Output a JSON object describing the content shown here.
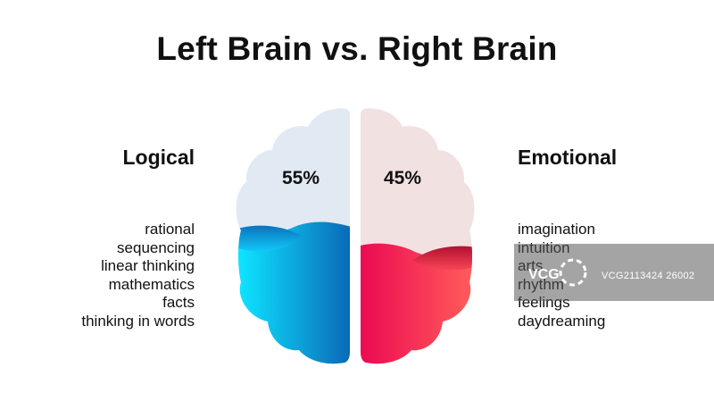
{
  "title": "Left Brain vs. Right Brain",
  "left": {
    "heading": "Logical",
    "percent": "55%",
    "items": [
      "rational",
      "sequencing",
      "linear thinking",
      "mathematics",
      "facts",
      "thinking in words"
    ]
  },
  "right": {
    "heading": "Emotional",
    "percent": "45%",
    "items": [
      "imagination",
      "intuition",
      "arts",
      "rhythm",
      "feelings",
      "daydreaming"
    ]
  },
  "watermark": {
    "logo_text": "VCG",
    "text": "VCG2113424 26002"
  },
  "colors": {
    "left_light": "#e1eaf2",
    "left_fill_start": "#0ee2ff",
    "left_fill_end": "#0a6ab8",
    "right_light": "#f2e1e1",
    "right_fill_start": "#ec0a52",
    "right_fill_end": "#ff5a5a"
  }
}
